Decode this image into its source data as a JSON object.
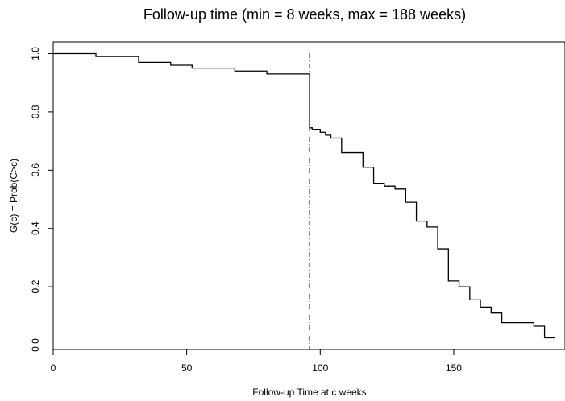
{
  "chart_data": {
    "type": "line",
    "title": "Follow-up time (min = 8 weeks, max = 188 weeks)",
    "xlabel": "Follow-up Time at c weeks",
    "ylabel": "G(c) = Prob(C>c)",
    "xlim": [
      0,
      190
    ],
    "ylim": [
      0,
      1.03
    ],
    "x_ticks": [
      "0",
      "50",
      "100",
      "150"
    ],
    "y_ticks": [
      "0.0",
      "0.2",
      "0.4",
      "0.6",
      "0.8",
      "1.0"
    ],
    "line_style": "step",
    "grid": false,
    "legend": "none",
    "vline": {
      "x": 96,
      "style": "dash-dot"
    },
    "series": [
      {
        "x": [
          0,
          16,
          32,
          44,
          52,
          68,
          80,
          96,
          97,
          100,
          102,
          104,
          108,
          116,
          120,
          124,
          128,
          132,
          136,
          140,
          144,
          148,
          152,
          156,
          160,
          164,
          168,
          172,
          180,
          184,
          188
        ],
        "y": [
          1.0,
          0.99,
          0.97,
          0.96,
          0.95,
          0.94,
          0.93,
          0.745,
          0.74,
          0.73,
          0.72,
          0.71,
          0.66,
          0.61,
          0.555,
          0.545,
          0.535,
          0.49,
          0.425,
          0.405,
          0.33,
          0.22,
          0.2,
          0.155,
          0.13,
          0.11,
          0.077,
          0.077,
          0.065,
          0.025,
          0.025
        ]
      }
    ]
  }
}
